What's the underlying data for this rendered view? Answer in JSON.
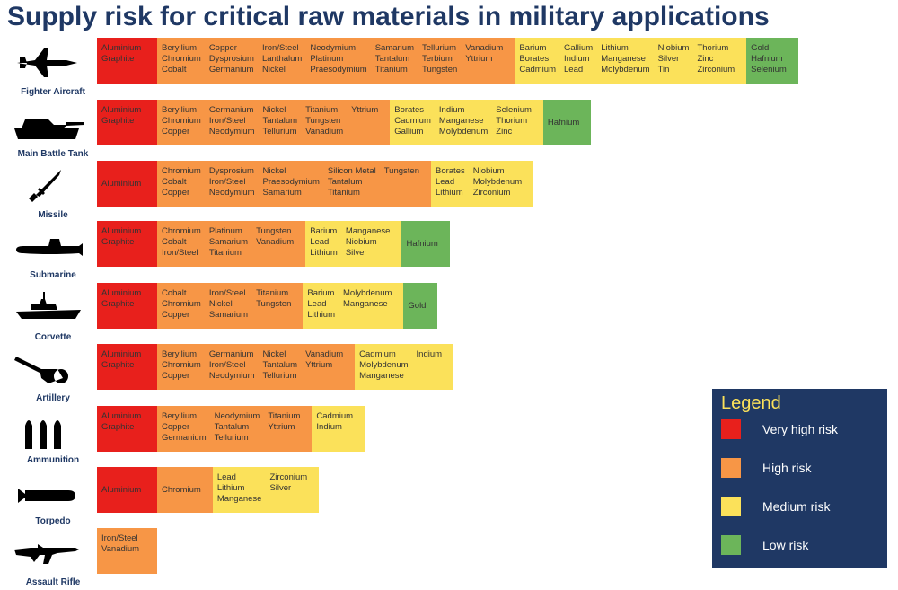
{
  "title": "Supply risk for critical raw materials in military applications",
  "legend": {
    "title": "Legend",
    "items": [
      {
        "label": "Very high risk",
        "color": "#e8201c"
      },
      {
        "label": "High risk",
        "color": "#f79646"
      },
      {
        "label": "Medium risk",
        "color": "#fbe15a"
      },
      {
        "label": "Low risk",
        "color": "#6cb55a"
      }
    ]
  },
  "rows": [
    {
      "label": "Fighter Aircraft",
      "segments": [
        {
          "color": "#e8201c",
          "columns": [
            [
              "Aluminium",
              "Graphite"
            ]
          ]
        },
        {
          "color": "#f79646",
          "columns": [
            [
              "Beryllium",
              "Chromium",
              "Cobalt"
            ],
            [
              "Copper",
              "Dysprosium",
              "Germanium"
            ],
            [
              "Iron/Steel",
              "Lanthalum",
              "Nickel"
            ],
            [
              "Neodymium",
              "Platinum",
              "Praesodymium"
            ],
            [
              "Samarium",
              "Tantalum",
              "Titanium"
            ],
            [
              "Tellurium",
              "Terbium",
              "Tungsten"
            ],
            [
              "Vanadium",
              "Yttrium"
            ]
          ]
        },
        {
          "color": "#fbe15a",
          "columns": [
            [
              "Barium",
              "Borates",
              "Cadmium"
            ],
            [
              "Gallium",
              "Indium",
              "Lead"
            ],
            [
              "Lithium",
              "Manganese",
              "Molybdenum"
            ],
            [
              "Niobium",
              "Silver",
              "Tin"
            ],
            [
              "Thorium",
              "Zinc",
              "Zirconium"
            ]
          ]
        },
        {
          "color": "#6cb55a",
          "columns": [
            [
              "Gold",
              "Hafnium",
              "Selenium"
            ]
          ]
        }
      ]
    },
    {
      "label": "Main Battle Tank",
      "segments": [
        {
          "color": "#e8201c",
          "columns": [
            [
              "Aluminium",
              "Graphite"
            ]
          ]
        },
        {
          "color": "#f79646",
          "columns": [
            [
              "Beryllium",
              "Chromium",
              "Copper"
            ],
            [
              "Germanium",
              "Iron/Steel",
              "Neodymium"
            ],
            [
              "Nickel",
              "Tantalum",
              "Tellurium"
            ],
            [
              "Titanium",
              "Tungsten",
              "Vanadium"
            ],
            [
              "Yttrium"
            ]
          ]
        },
        {
          "color": "#fbe15a",
          "columns": [
            [
              "Borates",
              "Cadmium",
              "Gallium"
            ],
            [
              "Indium",
              "Manganese",
              "Molybdenum"
            ],
            [
              "Selenium",
              "Thorium",
              "Zinc"
            ]
          ]
        },
        {
          "color": "#6cb55a",
          "columns": [
            [
              "Hafnium"
            ]
          ]
        }
      ]
    },
    {
      "label": "Missile",
      "segments": [
        {
          "color": "#e8201c",
          "columns": [
            [
              "Aluminium"
            ]
          ]
        },
        {
          "color": "#f79646",
          "columns": [
            [
              "Chromium",
              "Cobalt",
              "Copper"
            ],
            [
              "Dysprosium",
              "Iron/Steel",
              "Neodymium"
            ],
            [
              "Nickel",
              "Praesodymium",
              "Samarium"
            ],
            [
              "Silicon Metal",
              "Tantalum",
              "Titanium"
            ],
            [
              "Tungsten"
            ]
          ]
        },
        {
          "color": "#fbe15a",
          "columns": [
            [
              "Borates",
              "Lead",
              "Lithium"
            ],
            [
              "Niobium",
              "Molybdenum",
              "Zirconium"
            ]
          ]
        }
      ]
    },
    {
      "label": "Submarine",
      "segments": [
        {
          "color": "#e8201c",
          "columns": [
            [
              "Aluminium",
              "Graphite"
            ]
          ]
        },
        {
          "color": "#f79646",
          "columns": [
            [
              "Chromium",
              "Cobalt",
              "Iron/Steel"
            ],
            [
              "Platinum",
              "Samarium",
              "Titanium"
            ],
            [
              "Tungsten",
              "Vanadium"
            ]
          ]
        },
        {
          "color": "#fbe15a",
          "columns": [
            [
              "Barium",
              "Lead",
              "Lithium"
            ],
            [
              "Manganese",
              "Niobium",
              "Silver"
            ]
          ]
        },
        {
          "color": "#6cb55a",
          "columns": [
            [
              "Hafnium"
            ]
          ]
        }
      ]
    },
    {
      "label": "Corvette",
      "segments": [
        {
          "color": "#e8201c",
          "columns": [
            [
              "Aluminium",
              "Graphite"
            ]
          ]
        },
        {
          "color": "#f79646",
          "columns": [
            [
              "Cobalt",
              "Chromium",
              "Copper"
            ],
            [
              "Iron/Steel",
              "Nickel",
              "Samarium"
            ],
            [
              "Titanium",
              "Tungsten"
            ]
          ]
        },
        {
          "color": "#fbe15a",
          "columns": [
            [
              "Barium",
              "Lead",
              "Lithium"
            ],
            [
              "Molybdenum",
              "Manganese"
            ]
          ]
        },
        {
          "color": "#6cb55a",
          "columns": [
            [
              "Gold"
            ]
          ]
        }
      ]
    },
    {
      "label": "Artillery",
      "segments": [
        {
          "color": "#e8201c",
          "columns": [
            [
              "Aluminium",
              "Graphite"
            ]
          ]
        },
        {
          "color": "#f79646",
          "columns": [
            [
              "Beryllium",
              "Chromium",
              "Copper"
            ],
            [
              "Germanium",
              "Iron/Steel",
              "Neodymium"
            ],
            [
              "Nickel",
              "Tantalum",
              "Tellurium"
            ],
            [
              "Vanadium",
              "Yttrium"
            ]
          ]
        },
        {
          "color": "#fbe15a",
          "columns": [
            [
              "Cadmium",
              "Molybdenum",
              "Manganese"
            ],
            [
              "Indium"
            ]
          ]
        }
      ]
    },
    {
      "label": "Ammunition",
      "segments": [
        {
          "color": "#e8201c",
          "columns": [
            [
              "Aluminium",
              "Graphite"
            ]
          ]
        },
        {
          "color": "#f79646",
          "columns": [
            [
              "Beryllium",
              "Copper",
              "Germanium"
            ],
            [
              "Neodymium",
              "Tantalum",
              "Tellurium"
            ],
            [
              "Titanium",
              "Yttrium"
            ]
          ]
        },
        {
          "color": "#fbe15a",
          "columns": [
            [
              "Cadmium",
              "Indium"
            ]
          ]
        }
      ]
    },
    {
      "label": "Torpedo",
      "segments": [
        {
          "color": "#e8201c",
          "columns": [
            [
              "Aluminium"
            ]
          ]
        },
        {
          "color": "#f79646",
          "columns": [
            [
              "Chromium"
            ]
          ]
        },
        {
          "color": "#fbe15a",
          "columns": [
            [
              "Lead",
              "Lithium",
              "Manganese"
            ],
            [
              "Zirconium",
              "Silver"
            ]
          ]
        }
      ]
    },
    {
      "label": "Assault Rifle",
      "segments": [
        {
          "color": "#f79646",
          "columns": [
            [
              "Iron/Steel",
              "Vanadium"
            ]
          ]
        }
      ]
    }
  ]
}
